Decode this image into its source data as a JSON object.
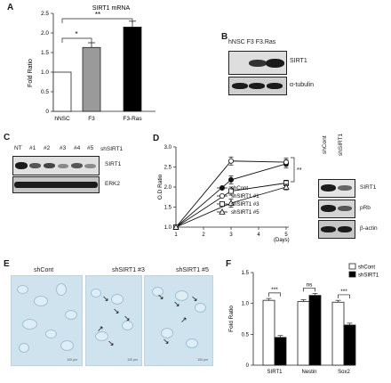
{
  "panels": {
    "A": {
      "label": "A",
      "title": "SIRT1 mRNA",
      "chart_data": {
        "type": "bar",
        "title": "SIRT1 mRNA",
        "categories": [
          "hNSC",
          "F3",
          "F3-Ras"
        ],
        "values": [
          1.0,
          1.63,
          2.15
        ],
        "errors": [
          0.0,
          0.12,
          0.15
        ],
        "bar_colors": [
          "#ffffff",
          "#9a9a9a",
          "#000000"
        ],
        "ylabel": "Fold Ratio",
        "xlabel": "",
        "ylim": [
          0,
          2.5
        ],
        "yticks": [
          "0",
          "0.5",
          "1.0",
          "1.5",
          "2.0",
          "2.5"
        ],
        "annotations": [
          {
            "text": "*",
            "between": [
              "hNSC",
              "F3"
            ]
          },
          {
            "text": "**",
            "between": [
              "hNSC",
              "F3-Ras"
            ]
          }
        ]
      }
    },
    "B": {
      "label": "B",
      "lanes": "hNSC F3 F3.Ras",
      "rows": [
        "SIRT1",
        "α-tubulin"
      ]
    },
    "C": {
      "label": "C",
      "lanes": [
        "NT",
        "#1",
        "#2",
        "#3",
        "#4",
        "#5"
      ],
      "group": "shSIRT1",
      "rows": [
        "SIRT1",
        "ERK2"
      ]
    },
    "D": {
      "label": "D",
      "chart_data": {
        "type": "line",
        "x": [
          1,
          3,
          5
        ],
        "xlabel": "(Days)",
        "ylabel": "O.D Ratio",
        "xticks": [
          "1",
          "2",
          "3",
          "4",
          "5"
        ],
        "yticks": [
          "1.0",
          "1.5",
          "2.0",
          "2.5",
          "3.0"
        ],
        "ylim": [
          1.0,
          3.0
        ],
        "series": [
          {
            "name": "shCont",
            "values": [
              1.0,
              2.18,
              2.58
            ],
            "errors": [
              0,
              0.1,
              0.1
            ],
            "marker": "filled-circle"
          },
          {
            "name": "shSIRT1 #1",
            "values": [
              1.0,
              2.65,
              2.62
            ],
            "errors": [
              0,
              0.1,
              0.1
            ],
            "marker": "open-circle"
          },
          {
            "name": "shSIRT1 #3",
            "values": [
              1.0,
              1.9,
              2.1
            ],
            "errors": [
              0,
              0.1,
              0.07
            ],
            "marker": "open-square"
          },
          {
            "name": "shSIRT1 #5",
            "values": [
              1.0,
              1.6,
              2.0
            ],
            "errors": [
              0,
              0.1,
              0.07
            ],
            "marker": "open-triangle"
          }
        ],
        "annotations": [
          {
            "text": "**"
          }
        ],
        "legend_position": "lower-right"
      },
      "blot": {
        "lanes": [
          "shCont",
          "shSIRT1"
        ],
        "rows": [
          "SIRT1",
          "pRb",
          "β-actin"
        ]
      }
    },
    "E": {
      "label": "E",
      "images": [
        "shCont",
        "shSIRT1 #3",
        "shSIRT1 #5"
      ],
      "scale_bar": "100 μm"
    },
    "F": {
      "label": "F",
      "chart_data": {
        "type": "bar",
        "categories": [
          "SIRT1",
          "Nestin",
          "Sox2"
        ],
        "series": [
          {
            "name": "shCont",
            "values": [
              1.05,
              1.03,
              1.02
            ],
            "color": "#ffffff"
          },
          {
            "name": "shSIRT1",
            "values": [
              0.45,
              1.13,
              0.65
            ],
            "color": "#000000"
          }
        ],
        "ylabel": "Fold Ratio",
        "xlabel": "",
        "ylim": [
          0,
          1.5
        ],
        "yticks": [
          "0",
          "0.5",
          "1.0",
          "1.5"
        ],
        "annotations": [
          "***",
          "ns",
          "***"
        ],
        "legend_position": "top-right"
      }
    }
  }
}
